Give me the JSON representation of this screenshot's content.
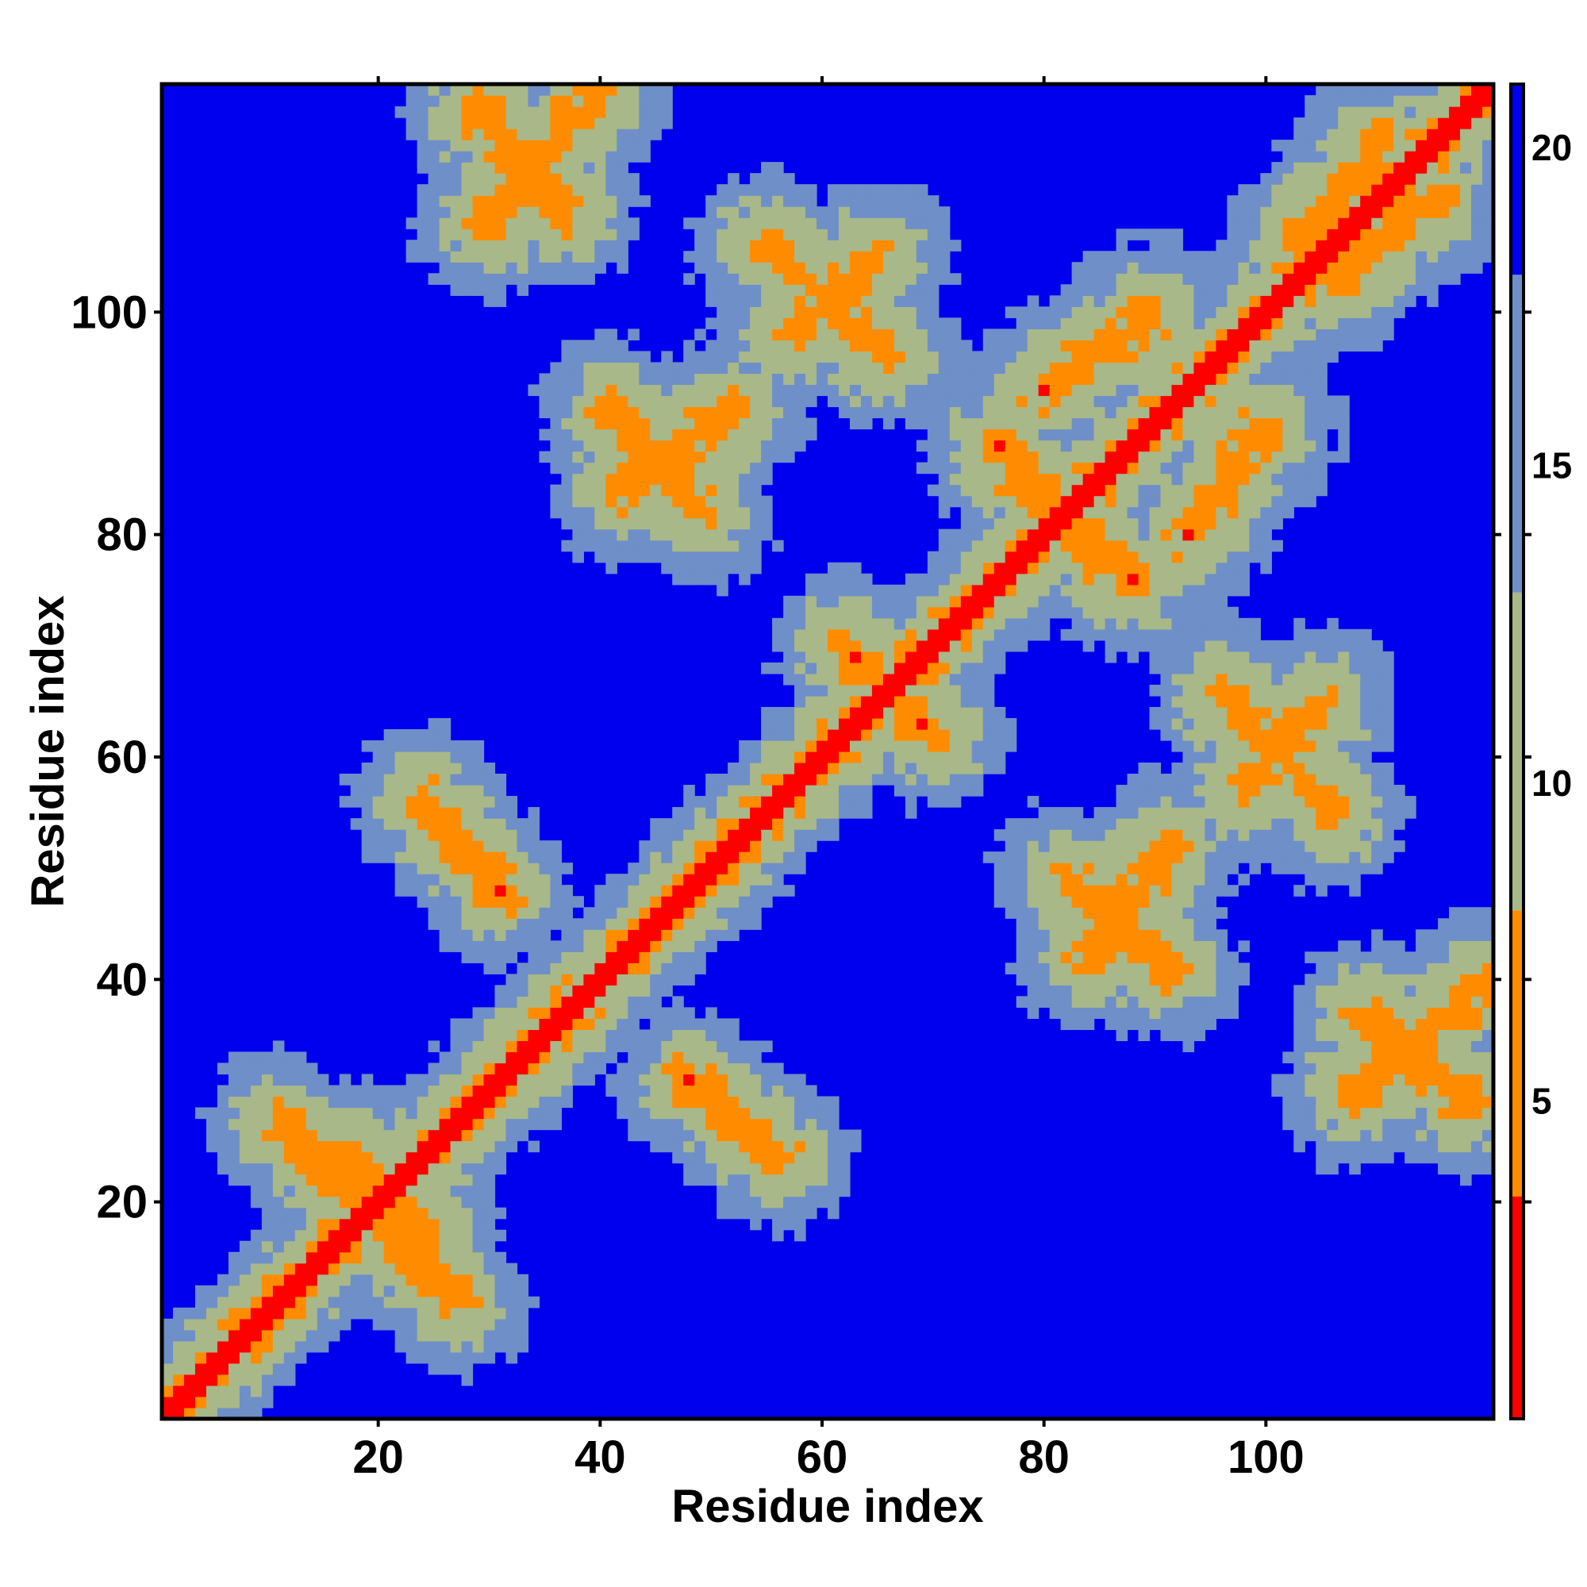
{
  "chart_data": {
    "type": "heatmap",
    "title": "",
    "xlabel": "Residue index",
    "ylabel": "Residue index",
    "n_residues": 120,
    "xlim": [
      1,
      121
    ],
    "ylim": [
      1,
      121
    ],
    "x_ticks": [
      20,
      40,
      60,
      80,
      100
    ],
    "y_ticks": [
      20,
      40,
      60,
      80,
      100
    ],
    "x_tick_labels": [
      "20",
      "40",
      "60",
      "80",
      "100"
    ],
    "y_tick_labels": [
      "20",
      "40",
      "60",
      "80",
      "100"
    ],
    "colorbar": {
      "range": [
        0,
        21
      ],
      "ticks": [
        5,
        10,
        15,
        20
      ],
      "tick_labels": [
        "5",
        "10",
        "15",
        "20"
      ],
      "colors": {
        "contact": "#ff0000",
        "near": "#ff8c00",
        "mid": "#a8b888",
        "far": "#6f8fc8",
        "background": "#0000ee"
      }
    },
    "symmetric": true,
    "diagonal_band_width": 1.5,
    "contact_features": [
      {
        "type": "antiparallel",
        "a": [
          11,
          25
        ],
        "b": [
          13,
          27
        ]
      },
      {
        "type": "antiparallel",
        "a": [
          17,
          22
        ],
        "b": [
          19,
          24
        ]
      },
      {
        "type": "antiparallel",
        "a": [
          24,
          31
        ],
        "b": [
          48,
          56
        ]
      },
      {
        "type": "antiparallel",
        "a": [
          29,
          37
        ],
        "b": [
          109,
          118
        ]
      },
      {
        "type": "antiparallel",
        "a": [
          41,
          49
        ],
        "b": [
          82,
          91
        ]
      },
      {
        "type": "antiparallel",
        "a": [
          55,
          66
        ],
        "b": [
          96,
          106
        ]
      },
      {
        "type": "antiparallel",
        "a": [
          62,
          70
        ],
        "b": [
          62,
          70
        ]
      },
      {
        "type": "antiparallel",
        "a": [
          77,
          88
        ],
        "b": [
          76,
          86
        ]
      },
      {
        "type": "parallel",
        "a": [
          80,
          90
        ],
        "b": [
          93,
          100
        ]
      },
      {
        "type": "parallel",
        "a": [
          84,
          91
        ],
        "b": [
          42,
          52
        ]
      },
      {
        "type": "parallel",
        "a": [
          98,
          105
        ],
        "b": [
          57,
          65
        ]
      },
      {
        "type": "parallel",
        "a": [
          103,
          110
        ],
        "b": [
          106,
          115
        ]
      },
      {
        "type": "parallel",
        "a": [
          108,
          120
        ],
        "b": [
          30,
          40
        ]
      }
    ]
  }
}
